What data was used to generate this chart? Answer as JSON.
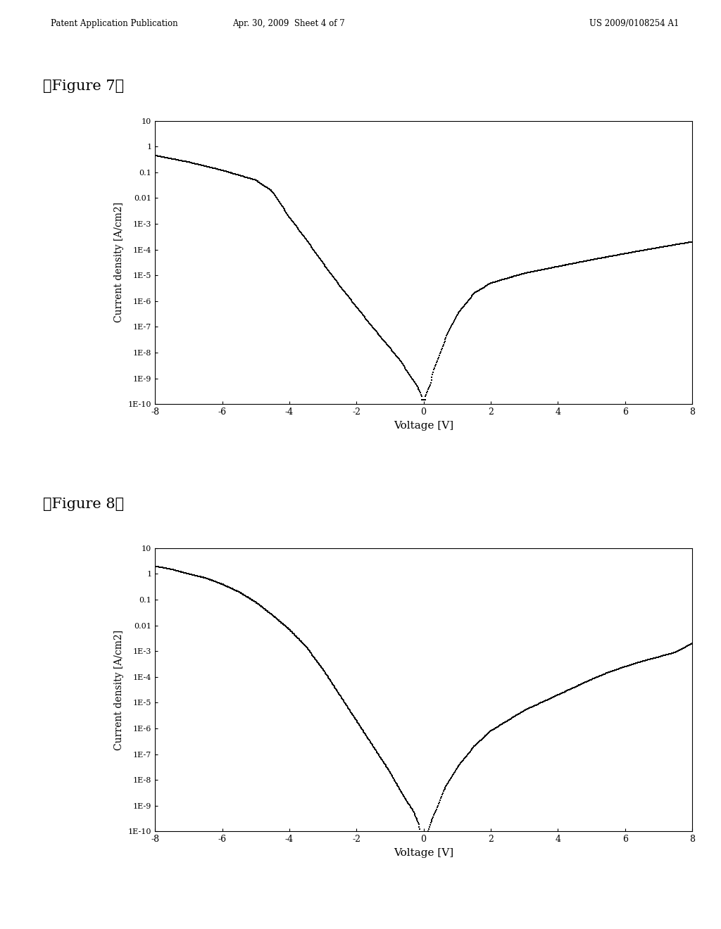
{
  "fig_width": 10.24,
  "fig_height": 13.2,
  "background_color": "#ffffff",
  "header_left": "Patent Application Publication",
  "header_mid": "Apr. 30, 2009  Sheet 4 of 7",
  "header_right": "US 2009/0108254 A1",
  "fig7_label": "【Figure 7】",
  "fig8_label": "【Figure 8】",
  "xlabel": "Voltage [V]",
  "ylabel": "Current density [A/cm2]",
  "xlim": [
    -8,
    8
  ],
  "xticks": [
    -8,
    -6,
    -4,
    -2,
    0,
    2,
    4,
    6,
    8
  ],
  "ytick_labels": [
    "1E-10",
    "1E-9",
    "1E-8",
    "1E-7",
    "1E-6",
    "1E-5",
    "1E-4",
    "1E-3",
    "0.01",
    "0.1",
    "1",
    "10"
  ],
  "ytick_values": [
    1e-10,
    1e-09,
    1e-08,
    1e-07,
    1e-06,
    1e-05,
    0.0001,
    0.001,
    0.01,
    0.1,
    1.0,
    10.0
  ],
  "fig7_neg_v": [
    -8.0,
    -7.0,
    -6.0,
    -5.0,
    -4.5,
    -4.0,
    -3.5,
    -3.0,
    -2.5,
    -2.0,
    -1.5,
    -1.0,
    -0.7,
    -0.5,
    -0.3,
    -0.2,
    -0.1,
    -0.05
  ],
  "fig7_neg_i": [
    0.45,
    0.25,
    0.12,
    0.05,
    0.018,
    0.0018,
    0.00025,
    3e-05,
    4e-06,
    6e-07,
    9e-08,
    1.5e-08,
    5e-09,
    2e-09,
    8e-10,
    5e-10,
    3e-10,
    2e-10
  ],
  "fig7_pos_v": [
    0.05,
    0.1,
    0.2,
    0.3,
    0.5,
    0.7,
    1.0,
    1.5,
    2.0,
    3.0,
    4.0,
    5.0,
    6.0,
    7.0,
    8.0
  ],
  "fig7_pos_i": [
    2e-10,
    3e-10,
    6e-10,
    2e-09,
    1e-08,
    5e-08,
    3e-07,
    2e-06,
    5e-06,
    1.2e-05,
    2.2e-05,
    4e-05,
    7e-05,
    0.00012,
    0.0002
  ],
  "fig7_min_i": 1.5e-10,
  "fig8_neg_v": [
    -8.0,
    -7.5,
    -7.0,
    -6.5,
    -6.0,
    -5.5,
    -5.0,
    -4.5,
    -4.0,
    -3.5,
    -3.0,
    -2.5,
    -2.0,
    -1.5,
    -1.0,
    -0.7,
    -0.5,
    -0.3,
    -0.15,
    -0.05
  ],
  "fig8_neg_i": [
    2.0,
    1.5,
    1.0,
    0.7,
    0.4,
    0.2,
    0.08,
    0.025,
    0.007,
    0.0015,
    0.0002,
    2e-05,
    2e-06,
    2e-07,
    2e-08,
    4e-09,
    1.5e-09,
    6e-10,
    2e-10,
    5e-11
  ],
  "fig8_pos_v": [
    0.05,
    0.1,
    0.2,
    0.4,
    0.6,
    1.0,
    1.5,
    2.0,
    3.0,
    4.0,
    5.0,
    5.5,
    6.0,
    6.5,
    7.0,
    7.5,
    8.0
  ],
  "fig8_pos_i": [
    5e-11,
    8e-11,
    2e-10,
    8e-10,
    4e-09,
    3e-08,
    2e-07,
    8e-07,
    5e-06,
    2e-05,
    8e-05,
    0.00015,
    0.00025,
    0.0004,
    0.0006,
    0.0009,
    0.002
  ],
  "fig8_min_i": 5e-11
}
